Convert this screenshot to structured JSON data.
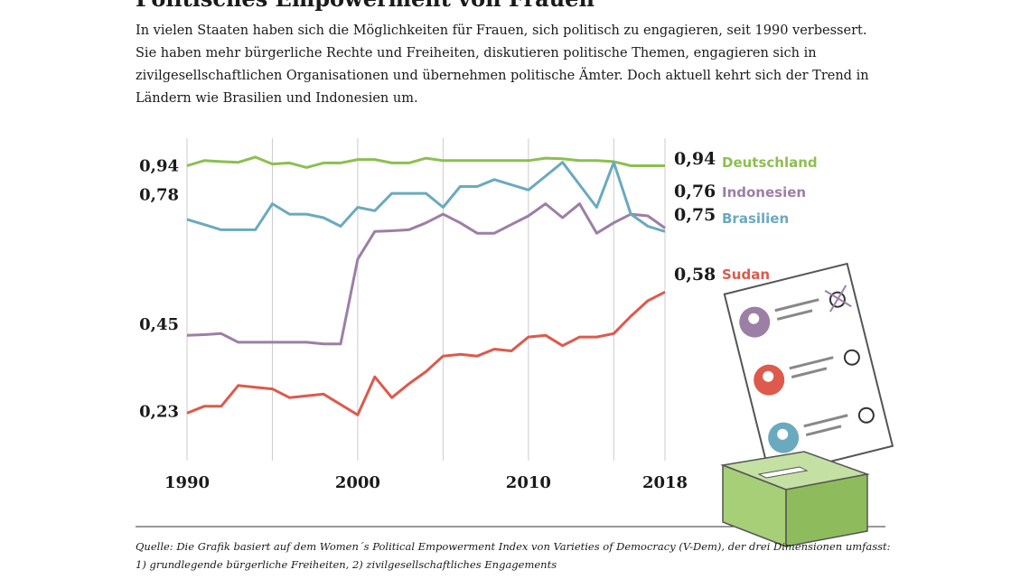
{
  "header": {
    "title": "Politisches Empowerment von Frauen",
    "subtitle": "In vielen Staaten haben sich die Möglichkeiten für Frauen, sich politisch zu engagieren, seit 1990 verbessert. Sie haben mehr bürgerliche Rechte und Freiheiten, diskutieren politische Themen, engagieren sich in zivilgesellschaftlichen Organisationen und übernehmen politische Ämter. Doch aktuell kehrt sich der Trend in Ländern wie Brasilien und Indonesien um."
  },
  "footer": {
    "source": "Quelle: Die Grafik basiert auf dem Women´s Political Empowerment Index von Varieties of Democracy (V-Dem), der drei Dimensionen umfasst: 1) grundlegende bürgerliche Freiheiten, 2) zivilgesellschaftliches Engagements"
  },
  "colors": {
    "deutschland": "#8cbf4f",
    "indonesien": "#9c7fa5",
    "brasilien": "#6aaabf",
    "sudan": "#dd5a4c",
    "grid": "#cccccc",
    "ballot_box": "#a6cf78"
  },
  "chart_data": {
    "type": "line",
    "x": [
      1990,
      1991,
      1992,
      1993,
      1994,
      1995,
      1996,
      1997,
      1998,
      1999,
      2000,
      2001,
      2002,
      2003,
      2004,
      2005,
      2006,
      2007,
      2008,
      2009,
      2010,
      2011,
      2012,
      2013,
      2014,
      2015,
      2016,
      2017,
      2018
    ],
    "xticks": [
      "1990",
      "2000",
      "2010",
      "2018"
    ],
    "start_labels": [
      "0,94",
      "0,78",
      "0,45",
      "0,23"
    ],
    "series": [
      {
        "name": "Deutschland",
        "end_label": "0,94",
        "color": "#8cbf4f",
        "values": [
          0.94,
          0.955,
          0.952,
          0.95,
          0.965,
          0.945,
          0.948,
          0.935,
          0.948,
          0.948,
          0.958,
          0.958,
          0.948,
          0.948,
          0.962,
          0.955,
          0.955,
          0.955,
          0.955,
          0.955,
          0.955,
          0.962,
          0.96,
          0.955,
          0.955,
          0.952,
          0.94,
          0.94,
          0.94
        ]
      },
      {
        "name": "Indonesien",
        "end_label": "0,76",
        "color": "#9c7fa5",
        "values": [
          0.45,
          0.452,
          0.455,
          0.43,
          0.43,
          0.43,
          0.43,
          0.43,
          0.425,
          0.425,
          0.67,
          0.75,
          0.752,
          0.755,
          0.775,
          0.8,
          0.775,
          0.745,
          0.745,
          0.77,
          0.795,
          0.83,
          0.79,
          0.83,
          0.745,
          0.775,
          0.8,
          0.795,
          0.76
        ]
      },
      {
        "name": "Brasilien",
        "end_label": "0,75",
        "color": "#6aaabf",
        "values": [
          0.785,
          0.77,
          0.755,
          0.755,
          0.755,
          0.83,
          0.8,
          0.8,
          0.79,
          0.765,
          0.82,
          0.81,
          0.86,
          0.86,
          0.86,
          0.82,
          0.88,
          0.88,
          0.9,
          0.885,
          0.87,
          0.91,
          0.95,
          0.885,
          0.82,
          0.95,
          0.8,
          0.765,
          0.75
        ]
      },
      {
        "name": "Sudan",
        "end_label": "0,58",
        "color": "#dd5a4c",
        "values": [
          0.225,
          0.245,
          0.245,
          0.305,
          0.3,
          0.295,
          0.27,
          0.275,
          0.28,
          0.25,
          0.22,
          0.33,
          0.27,
          0.31,
          0.345,
          0.39,
          0.395,
          0.39,
          0.41,
          0.405,
          0.445,
          0.45,
          0.42,
          0.445,
          0.445,
          0.455,
          0.505,
          0.55,
          0.575
        ]
      }
    ]
  }
}
